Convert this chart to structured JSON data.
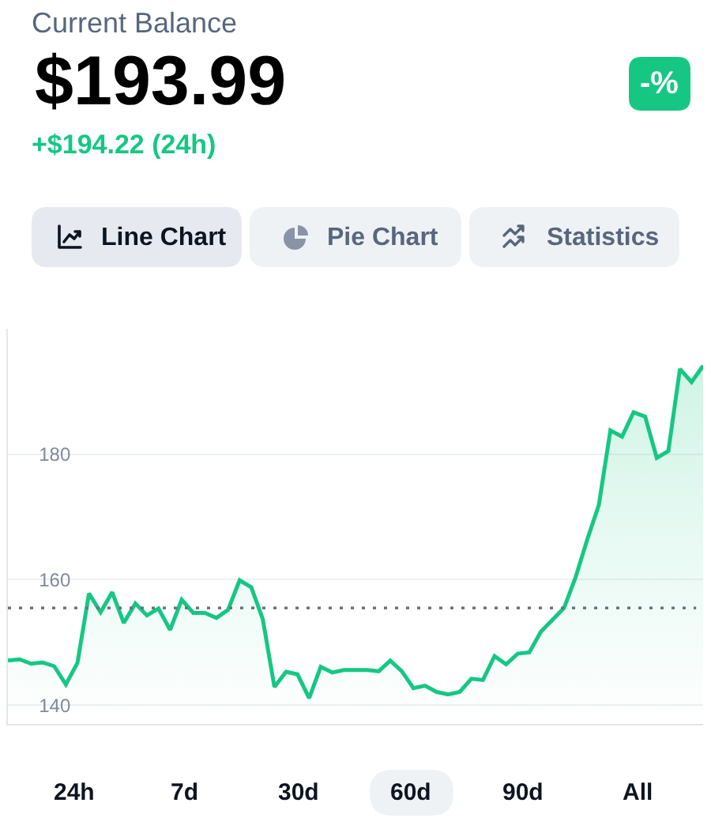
{
  "chart_data": {
    "type": "area",
    "title": "Current Balance",
    "subtitle": "$193.99",
    "annotations": [
      "+$194.22 (24h)",
      "-%",
      "Line Chart",
      "Pie Chart",
      "Statistics",
      "24h",
      "7d",
      "30d",
      "60d",
      "90d",
      "All"
    ],
    "categories": [
      null,
      null,
      null,
      null,
      null,
      null,
      null,
      null,
      null,
      null,
      null,
      null,
      null,
      null,
      null,
      null,
      null,
      null,
      null,
      null,
      null,
      null,
      null,
      null,
      null,
      null,
      null,
      null,
      null,
      null,
      null,
      null,
      null,
      null,
      null,
      null,
      null,
      null,
      null,
      null,
      null,
      null,
      null,
      null,
      null,
      null,
      null,
      null,
      null,
      null,
      null,
      null,
      null,
      null,
      null,
      null,
      null,
      null,
      null,
      null,
      null
    ],
    "series": [
      {
        "color": "#16c784",
        "values": [
          147.1,
          147.3,
          146.6,
          146.8,
          146.2,
          143.3,
          146.7,
          157.8,
          154.8,
          158.0,
          153.1,
          156.2,
          154.3,
          155.4,
          152.0,
          156.8,
          154.7,
          154.7,
          153.9,
          155.2,
          159.9,
          158.8,
          153.7,
          142.9,
          145.3,
          144.9,
          141.1,
          146.1,
          145.2,
          145.6,
          145.6,
          145.6,
          145.4,
          147.1,
          145.4,
          142.7,
          143.1,
          142.1,
          141.7,
          142.1,
          144.2,
          144.0,
          147.8,
          146.5,
          148.2,
          148.4,
          151.7,
          153.6,
          155.5,
          160.4,
          166.4,
          171.9,
          183.8,
          182.8,
          186.7,
          186.0,
          179.4,
          180.5,
          193.6,
          191.5,
          194.1
        ]
      }
    ],
    "ylim": [
      137,
      200
    ],
    "yticks": [
      140,
      160,
      180
    ],
    "grid": "y",
    "ref_lines": [
      {
        "axis": "y",
        "value": 155.5,
        "color": "#6b7280",
        "line_style": "dotted"
      }
    ]
  }
}
